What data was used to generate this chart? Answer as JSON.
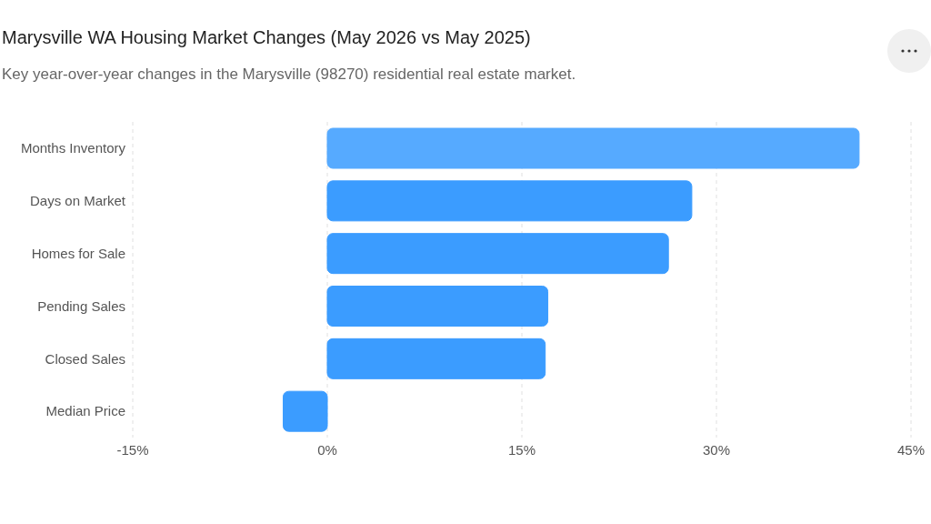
{
  "chart_data": {
    "type": "bar",
    "orientation": "horizontal",
    "title": "Marysville WA Housing Market Changes (May 2026 vs May 2025)",
    "subtitle": "Key year-over-year changes in the Marysville (98270) residential real estate market.",
    "categories": [
      "Months Inventory",
      "Days on Market",
      "Homes for Sale",
      "Pending Sales",
      "Closed Sales",
      "Median Price"
    ],
    "values": [
      41.0,
      28.1,
      26.3,
      17.0,
      16.8,
      -3.4
    ],
    "colors": [
      "#56aaff",
      "#3b9cff",
      "#3b9cff",
      "#3b9cff",
      "#3b9cff",
      "#3b9cff"
    ],
    "xlim": [
      -15,
      45
    ],
    "xticks": [
      {
        "value": -15,
        "label": "-15%"
      },
      {
        "value": 0,
        "label": "0%"
      },
      {
        "value": 15,
        "label": "15%"
      },
      {
        "value": 30,
        "label": "30%"
      },
      {
        "value": 45,
        "label": "45%"
      }
    ],
    "grid": "x"
  }
}
